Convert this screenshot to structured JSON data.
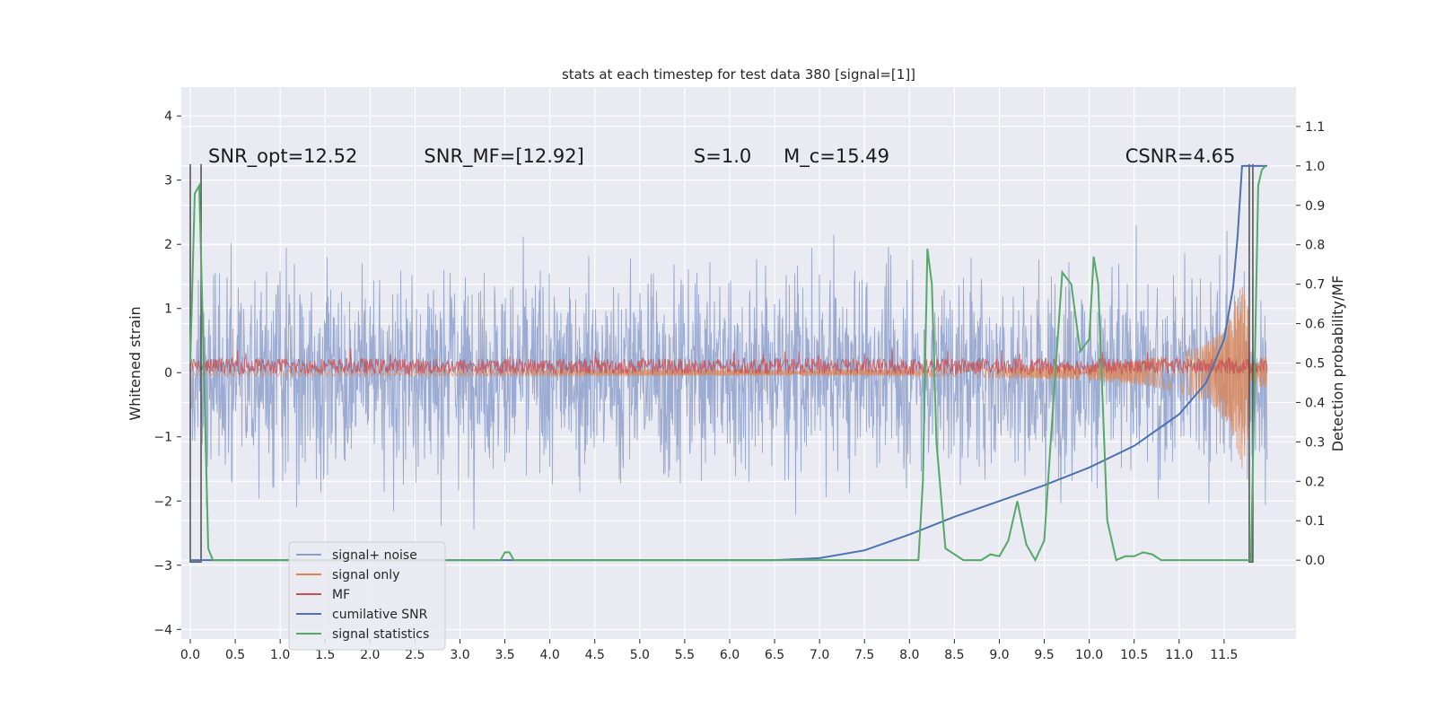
{
  "chart_data": {
    "type": "line",
    "title": "stats at each timestep for test data 380 [signal=[1]]",
    "xlabel": "",
    "ylabel": "Whitened strain",
    "ylabel_right": "Detection probability/MF",
    "xlim": [
      -0.1,
      12.3
    ],
    "ylim": [
      -4.15,
      4.45
    ],
    "ylim_right": [
      -0.2,
      1.2
    ],
    "x_ticks": [
      0.0,
      0.5,
      1.0,
      1.5,
      2.0,
      2.5,
      3.0,
      3.5,
      4.0,
      4.5,
      5.0,
      5.5,
      6.0,
      6.5,
      7.0,
      7.5,
      8.0,
      8.5,
      9.0,
      9.5,
      10.0,
      10.5,
      11.0,
      11.5
    ],
    "x_tick_labels": [
      "0.0",
      "0.5",
      "1.0",
      "1.5",
      "2.0",
      "2.5",
      "3.0",
      "3.5",
      "4.0",
      "4.5",
      "5.0",
      "5.5",
      "6.0",
      "6.5",
      "7.0",
      "7.5",
      "8.0",
      "8.5",
      "9.0",
      "9.5",
      "10.0",
      "10.5",
      "11.0",
      "11.5"
    ],
    "y_ticks": [
      -4,
      -3,
      -2,
      -1,
      0,
      1,
      2,
      3,
      4
    ],
    "y_tick_labels": [
      "−4",
      "−3",
      "−2",
      "−1",
      "0",
      "1",
      "2",
      "3",
      "4"
    ],
    "y_right_ticks": [
      0.0,
      0.1,
      0.2,
      0.3,
      0.4,
      0.5,
      0.6,
      0.7,
      0.8,
      0.9,
      1.0,
      1.1
    ],
    "y_right_tick_labels": [
      "0.0",
      "0.1",
      "0.2",
      "0.3",
      "0.4",
      "0.5",
      "0.6",
      "0.7",
      "0.8",
      "0.9",
      "1.0",
      "1.1"
    ],
    "grid": true,
    "legend_position": "lower-left",
    "annotations": [
      {
        "id": "snr-opt",
        "text": "SNR_opt=12.52",
        "x": 0.2,
        "y": 3.25
      },
      {
        "id": "snr-mf",
        "text": "SNR_MF=[12.92]",
        "x": 2.6,
        "y": 3.25
      },
      {
        "id": "s-value",
        "text": "S=1.0",
        "x": 5.6,
        "y": 3.25
      },
      {
        "id": "mc-value",
        "text": "M_c=15.49",
        "x": 6.6,
        "y": 3.25
      },
      {
        "id": "csnr-value",
        "text": "CSNR=4.65",
        "x": 10.4,
        "y": 3.25
      }
    ],
    "series": [
      {
        "name": "signal+ noise",
        "color": "#8da0cb",
        "axis": "left",
        "x_range": [
          0.0,
          11.98
        ],
        "envelope": [
          -2.6,
          2.9
        ]
      },
      {
        "name": "signal only",
        "color": "#dd8452",
        "axis": "left",
        "x": [
          0.0,
          8.0,
          9.0,
          10.0,
          10.5,
          11.0,
          11.3,
          11.5,
          11.6,
          11.7,
          11.8
        ],
        "amplitude": [
          0.05,
          0.05,
          0.08,
          0.12,
          0.18,
          0.3,
          0.45,
          0.7,
          1.0,
          1.5,
          0.8
        ]
      },
      {
        "name": "MF",
        "color": "#c44e52",
        "axis": "left",
        "x_range": [
          0.0,
          11.98
        ],
        "level": 0.1
      },
      {
        "name": "cumilative SNR",
        "color": "#4c72b0",
        "axis": "right",
        "x": [
          0.0,
          6.5,
          7.0,
          7.5,
          8.0,
          8.5,
          9.0,
          9.5,
          10.0,
          10.5,
          11.0,
          11.3,
          11.5,
          11.6,
          11.65,
          11.7,
          11.8,
          11.98
        ],
        "y": [
          0.0,
          0.0,
          0.005,
          0.025,
          0.065,
          0.11,
          0.15,
          0.19,
          0.235,
          0.29,
          0.37,
          0.45,
          0.56,
          0.69,
          0.82,
          1.0,
          1.0,
          1.0
        ]
      },
      {
        "name": "signal statistics",
        "color": "#55a868",
        "axis": "right",
        "x": [
          0.0,
          0.05,
          0.1,
          0.15,
          0.2,
          0.25,
          0.3,
          3.45,
          3.5,
          3.55,
          3.6,
          8.1,
          8.15,
          8.2,
          8.25,
          8.3,
          8.4,
          8.6,
          8.8,
          8.9,
          9.0,
          9.1,
          9.2,
          9.3,
          9.4,
          9.5,
          9.6,
          9.7,
          9.8,
          9.9,
          10.0,
          10.05,
          10.1,
          10.2,
          10.3,
          10.4,
          10.5,
          10.6,
          10.7,
          10.8,
          10.9,
          11.0,
          11.6,
          11.75,
          11.8,
          11.88,
          11.92,
          11.96
        ],
        "y": [
          0.5,
          0.93,
          0.95,
          0.5,
          0.03,
          0.0,
          0.0,
          0.0,
          0.02,
          0.02,
          0.0,
          0.0,
          0.2,
          0.79,
          0.7,
          0.3,
          0.03,
          0.0,
          0.0,
          0.015,
          0.01,
          0.05,
          0.15,
          0.04,
          0.0,
          0.05,
          0.4,
          0.73,
          0.7,
          0.53,
          0.56,
          0.77,
          0.7,
          0.1,
          0.0,
          0.01,
          0.01,
          0.02,
          0.015,
          0.0,
          0.0,
          0.0,
          0.0,
          0.0,
          0.0,
          0.95,
          0.99,
          1.0
        ]
      }
    ],
    "markers": [
      {
        "name": "left-bracket-line",
        "x": [
          0.0,
          0.12
        ],
        "y": [
          -2.95,
          3.25
        ]
      },
      {
        "name": "right-bracket-line",
        "x": [
          11.78,
          11.82
        ],
        "y": [
          -2.95,
          3.25
        ]
      }
    ]
  },
  "legend": {
    "items": [
      {
        "label": "signal+ noise",
        "color": "#8da0cb"
      },
      {
        "label": "signal only",
        "color": "#dd8452"
      },
      {
        "label": "MF",
        "color": "#c44e52"
      },
      {
        "label": "cumilative SNR",
        "color": "#4c72b0"
      },
      {
        "label": "signal statistics",
        "color": "#55a868"
      }
    ]
  }
}
